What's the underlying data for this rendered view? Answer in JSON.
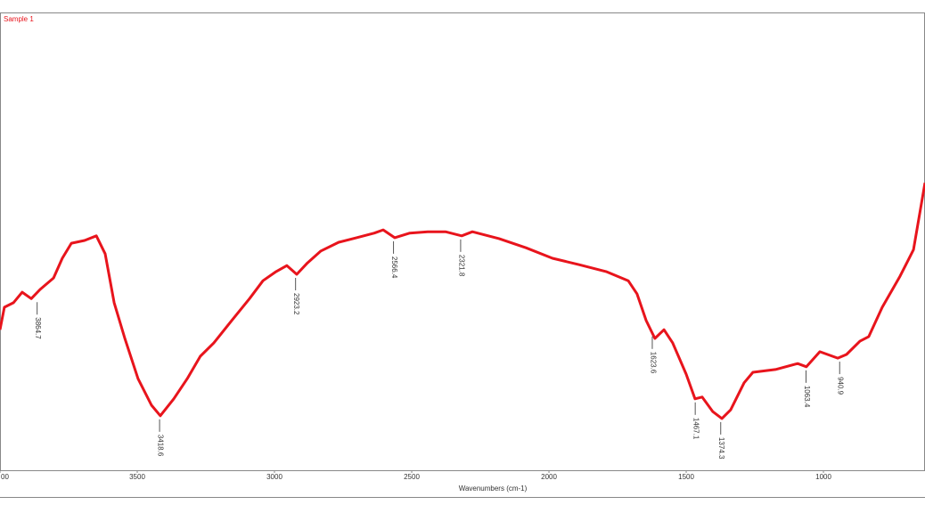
{
  "chart_data": {
    "type": "line",
    "legend_text": "Sample 1",
    "xlabel": "Wavenumbers (cm-1)",
    "xlim": [
      4000,
      630
    ],
    "ylim": [
      0,
      100
    ],
    "xticks": [
      {
        "value": 4000,
        "label": "00"
      },
      3500,
      3000,
      2500,
      2000,
      1500,
      1000
    ],
    "x": [
      4000,
      3984,
      3951,
      3919,
      3886,
      3854,
      3805,
      3773,
      3740,
      3692,
      3649,
      3617,
      3584,
      3545,
      3497,
      3448,
      3416,
      3367,
      3318,
      3270,
      3221,
      3156,
      3091,
      3042,
      2994,
      2955,
      2919,
      2880,
      2831,
      2766,
      2701,
      2636,
      2604,
      2562,
      2507,
      2442,
      2377,
      2318,
      2279,
      2182,
      2084,
      1987,
      1890,
      1792,
      1711,
      1679,
      1646,
      1614,
      1581,
      1549,
      1500,
      1468,
      1442,
      1403,
      1370,
      1338,
      1289,
      1257,
      1175,
      1094,
      1062,
      1013,
      948,
      916,
      867,
      835,
      786,
      721,
      672,
      630
    ],
    "series": [
      {
        "name": "Sample 1",
        "color": "#e8141c",
        "values": [
          30.7,
          35.6,
          36.6,
          38.9,
          37.5,
          39.5,
          42.0,
          46.3,
          49.6,
          50.2,
          51.2,
          47.3,
          36.6,
          28.8,
          20.0,
          14.2,
          11.9,
          15.6,
          20.0,
          24.9,
          27.8,
          32.7,
          37.5,
          41.4,
          43.4,
          44.7,
          42.8,
          45.3,
          47.9,
          49.8,
          50.8,
          51.8,
          52.5,
          50.8,
          51.8,
          52.1,
          52.1,
          51.2,
          52.1,
          50.6,
          48.6,
          46.3,
          44.9,
          43.4,
          41.4,
          38.5,
          32.7,
          28.8,
          30.7,
          27.8,
          21.0,
          15.6,
          16.0,
          12.8,
          11.3,
          13.2,
          19.1,
          21.4,
          22.0,
          23.3,
          22.6,
          25.9,
          24.5,
          25.3,
          28.2,
          29.2,
          35.6,
          42.4,
          48.2,
          62.8
        ]
      }
    ],
    "annotations": [
      {
        "text": "3864.7",
        "x": 3864.7,
        "y": 37.5
      },
      {
        "text": "3418.6",
        "x": 3418.6,
        "y": 11.9
      },
      {
        "text": "2923.2",
        "x": 2923.2,
        "y": 42.8
      },
      {
        "text": "2566.4",
        "x": 2566.4,
        "y": 50.8
      },
      {
        "text": "2321.8",
        "x": 2321.8,
        "y": 51.2
      },
      {
        "text": "1623.6",
        "x": 1623.6,
        "y": 30.0
      },
      {
        "text": "1467.1",
        "x": 1467.1,
        "y": 15.6
      },
      {
        "text": "1374.3",
        "x": 1374.3,
        "y": 11.3
      },
      {
        "text": "1063.4",
        "x": 1063.4,
        "y": 22.6
      },
      {
        "text": "940.9",
        "x": 940.9,
        "y": 24.5
      }
    ]
  }
}
